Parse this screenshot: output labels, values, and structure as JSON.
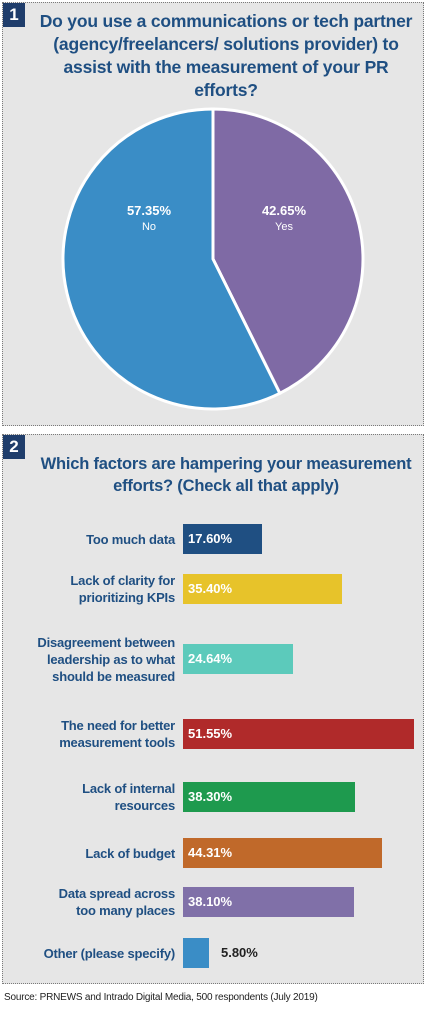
{
  "chart_data": [
    {
      "type": "pie",
      "number": "1",
      "title": "Do you use a communications or tech partner (agency/freelancers/ solutions provider) to assist with the measurement of your PR efforts?",
      "slices": [
        {
          "label": "Yes",
          "value": 42.65,
          "value_label": "42.65%",
          "color": "#7f6aa5"
        },
        {
          "label": "No",
          "value": 57.35,
          "value_label": "57.35%",
          "color": "#3a8dc6"
        }
      ]
    },
    {
      "type": "bar",
      "orientation": "horizontal",
      "number": "2",
      "title": "Which factors are hampering your measurement efforts? (Check all that apply)",
      "xlim": [
        0,
        51.55
      ],
      "categories": [
        "Too much data",
        "Lack of clarity for prioritizing KPIs",
        "Disagreement between leadership as to what should be measured",
        "The need for better measurement tools",
        "Lack of internal resources",
        "Lack of budget",
        "Data spread across too many places",
        "Other (please specify)"
      ],
      "values": [
        17.6,
        35.4,
        24.64,
        51.55,
        38.3,
        44.31,
        38.1,
        5.8
      ],
      "value_labels": [
        "17.60%",
        "35.40%",
        "24.64%",
        "51.55%",
        "38.30%",
        "44.31%",
        "38.10%",
        "5.80%"
      ],
      "colors": [
        "#1f4f82",
        "#e7c32a",
        "#5ccabb",
        "#b02a2a",
        "#1e9a4e",
        "#c0692a",
        "#8070a8",
        "#3a8dc6"
      ]
    }
  ],
  "bar_labels": [
    "Too much data",
    "Lack of clarity for\nprioritizing KPIs",
    "Disagreement between\nleadership as to what\nshould be measured",
    "The need for better\nmeasurement tools",
    "Lack of internal\nresources",
    "Lack of budget",
    "Data spread across\ntoo many places",
    "Other (please specify)"
  ],
  "source": "Source: PRNEWS and Intrado Digital Media, 500 respondents (July 2019)"
}
